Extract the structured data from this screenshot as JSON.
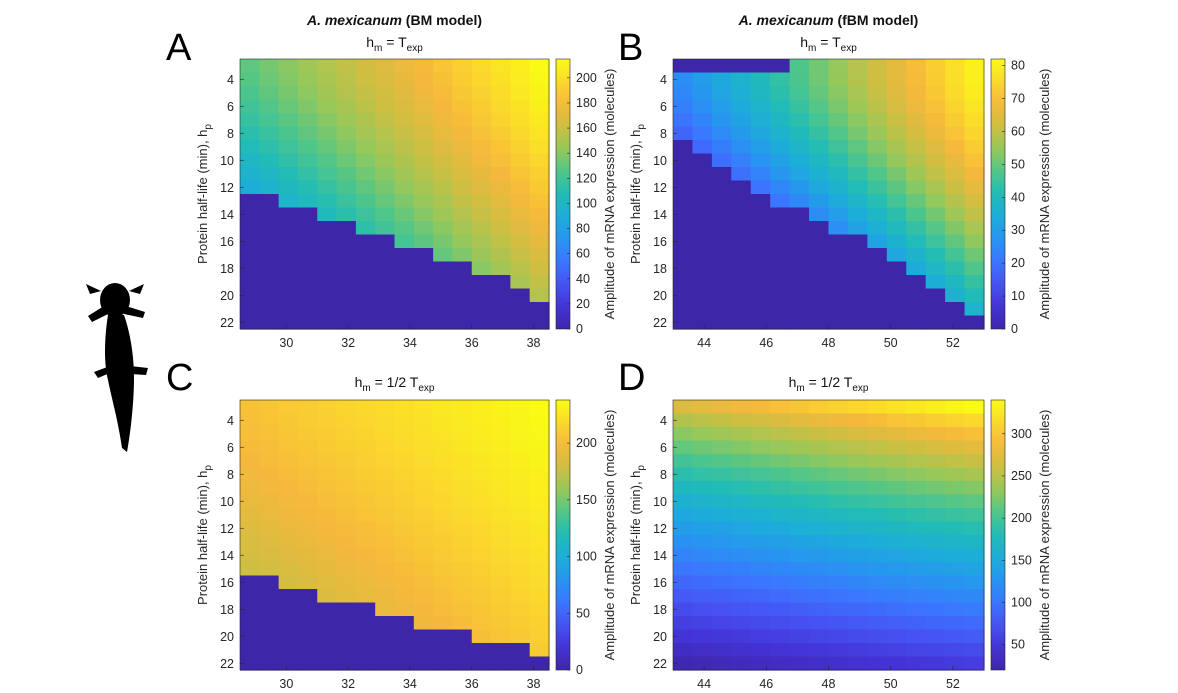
{
  "colors": {
    "parula_stops": [
      "#3e26a8",
      "#4433d6",
      "#4653f3",
      "#3b76ff",
      "#2795f0",
      "#1caed8",
      "#21bcb6",
      "#50c689",
      "#96c85a",
      "#ccbf42",
      "#f6b83c",
      "#fbd92c",
      "#f9fb15"
    ],
    "below_threshold": "#3e26a8"
  },
  "silhouette": "axolotl-silhouette",
  "chart_data": [
    {
      "panel": "A",
      "type": "heatmap",
      "title": "A. mexicanum (BM model)",
      "title_italic": "A. mexicanum",
      "title_rest": " (BM model)",
      "subtitle": "h_m = T_exp",
      "subtitle_main": "h",
      "subtitle_sub": "m",
      "subtitle_mid": " = T",
      "subtitle_sub2": "exp",
      "ylabel": "Protein half-life (min), h",
      "ylabel_sub": "p",
      "colorbar_label": "Amplitude of mRNA expression (molecules)",
      "xlim": [
        28.5,
        38.5
      ],
      "ylim": [
        2.5,
        22.5
      ],
      "x_ticks": [
        "30",
        "32",
        "34",
        "36",
        "38"
      ],
      "y_ticks": [
        "4",
        "6",
        "8",
        "10",
        "12",
        "14",
        "16",
        "18",
        "20",
        "22"
      ],
      "colorbar_range": [
        0,
        215
      ],
      "colorbar_ticks": [
        "0",
        "20",
        "40",
        "60",
        "80",
        "100",
        "120",
        "140",
        "160",
        "180",
        "200"
      ],
      "nx": 16,
      "ny": 20,
      "zero_boundary_hp": [
        12.5,
        12.5,
        13.5,
        13.5,
        14.5,
        14.5,
        15.5,
        15.5,
        16.5,
        16.5,
        17.5,
        17.5,
        18.5,
        18.5,
        19.5,
        20.5
      ],
      "value_model": {
        "top_left": 130,
        "top_right": 215,
        "hp_decay": 14,
        "hp_pow": 1.4,
        "y_slope": 70,
        "start": 2.5
      }
    },
    {
      "panel": "B",
      "type": "heatmap",
      "title": "A. mexicanum (fBM model)",
      "title_italic": "A. mexicanum",
      "title_rest": " (fBM model)",
      "subtitle": "h_m = T_exp",
      "subtitle_main": "h",
      "subtitle_sub": "m",
      "subtitle_mid": " = T",
      "subtitle_sub2": "exp",
      "ylabel": "Protein half-life (min), h",
      "ylabel_sub": "p",
      "colorbar_label": "Amplitude of mRNA expression (molecules)",
      "xlim": [
        43,
        53
      ],
      "ylim": [
        2.5,
        22.5
      ],
      "x_ticks": [
        "44",
        "46",
        "48",
        "50",
        "52"
      ],
      "y_ticks": [
        "4",
        "6",
        "8",
        "10",
        "12",
        "14",
        "16",
        "18",
        "20",
        "22"
      ],
      "colorbar_range": [
        0,
        82
      ],
      "colorbar_ticks": [
        "0",
        "10",
        "20",
        "30",
        "40",
        "50",
        "60",
        "70",
        "80"
      ],
      "nx": 16,
      "ny": 20,
      "zero_boundary_hp": [
        8.5,
        9.5,
        10.5,
        11.5,
        12.5,
        13.5,
        13.5,
        14.5,
        15.5,
        15.5,
        16.5,
        17.5,
        18.5,
        19.5,
        20.5,
        21.5
      ],
      "zero_top_hp": [
        3.5,
        3.5,
        3.5,
        3.5,
        3.5,
        3.5,
        2.5,
        2.5,
        2.5,
        2.5,
        2.5,
        2.5,
        2.5,
        2.5,
        2.5,
        2.5
      ],
      "value_model": {
        "top_left": 26,
        "top_right": 80,
        "hp_decay": 16,
        "hp_pow": 1.5,
        "y_slope": 58,
        "start": 3.5
      }
    },
    {
      "panel": "C",
      "type": "heatmap",
      "title": "",
      "subtitle": "h_m = 1/2 T_exp",
      "subtitle_main": "h",
      "subtitle_sub": "m",
      "subtitle_mid": " = 1/2 T",
      "subtitle_sub2": "exp",
      "ylabel": "Protein half-life (min), h",
      "ylabel_sub": "p",
      "colorbar_label": "Amplitude of mRNA expression (molecules)",
      "xlim": [
        28.5,
        38.5
      ],
      "ylim": [
        2.5,
        22.5
      ],
      "x_ticks": [
        "30",
        "32",
        "34",
        "36",
        "38"
      ],
      "y_ticks": [
        "4",
        "6",
        "8",
        "10",
        "12",
        "14",
        "16",
        "18",
        "20",
        "22"
      ],
      "colorbar_range": [
        0,
        238
      ],
      "colorbar_ticks": [
        "0",
        "50",
        "100",
        "150",
        "200"
      ],
      "nx": 16,
      "ny": 20,
      "zero_boundary_hp": [
        15.5,
        15.5,
        16.5,
        16.5,
        17.5,
        17.5,
        17.5,
        18.5,
        18.5,
        19.5,
        19.5,
        19.5,
        20.5,
        20.5,
        20.5,
        21.5
      ],
      "value_model": {
        "top_left": 205,
        "top_right": 238,
        "hp_decay": 14,
        "hp_pow": 1.3,
        "y_slope": 30,
        "start": 2.5
      }
    },
    {
      "panel": "D",
      "type": "heatmap",
      "title": "",
      "subtitle": "h_m = 1/2 T_exp",
      "subtitle_main": "h",
      "subtitle_sub": "m",
      "subtitle_mid": " = 1/2 T",
      "subtitle_sub2": "exp",
      "ylabel": "Protein half-life (min), h",
      "ylabel_sub": "p",
      "colorbar_label": "Amplitude of mRNA expression (molecules)",
      "xlim": [
        43,
        53
      ],
      "ylim": [
        2.5,
        22.5
      ],
      "x_ticks": [
        "44",
        "46",
        "48",
        "50",
        "52"
      ],
      "y_ticks": [
        "4",
        "6",
        "8",
        "10",
        "12",
        "14",
        "16",
        "18",
        "20",
        "22"
      ],
      "colorbar_range": [
        20,
        340
      ],
      "colorbar_ticks": [
        "50",
        "100",
        "150",
        "200",
        "250",
        "300"
      ],
      "nx": 16,
      "ny": 20,
      "value_model": {
        "top_left": 270,
        "top_right": 340,
        "bottom_left": 25,
        "bottom_right": 55,
        "hp_pow": 1.25
      }
    }
  ]
}
